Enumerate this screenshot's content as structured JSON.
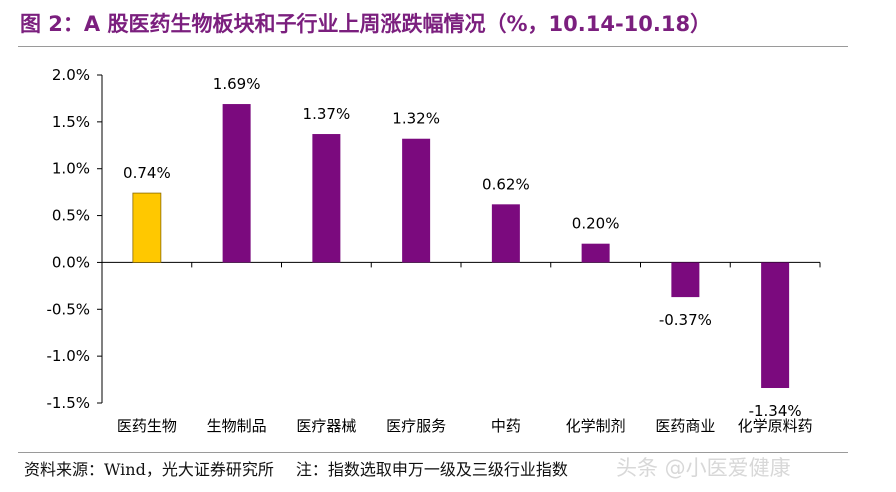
{
  "title": "图 2：A 股医药生物板块和子行业上周涨跌幅情况（%，10.14-10.18）",
  "source": "资料来源：Wind，光大证券研究所",
  "note": "注：指数选取申万一级及三级行业指数",
  "watermark": "头条 @小医爱健康",
  "colors": {
    "highlight": "#FFC800",
    "bar": "#7B0A7E",
    "title": "#7B1F7E",
    "axis": "#000000"
  },
  "chart_data": {
    "type": "bar",
    "categories": [
      "医药生物",
      "生物制品",
      "医疗器械",
      "医疗服务",
      "中药",
      "化学制剂",
      "医药商业",
      "化学原料药"
    ],
    "values": [
      0.74,
      1.69,
      1.37,
      1.32,
      0.62,
      0.2,
      -0.37,
      -1.34
    ],
    "data_labels": [
      "0.74%",
      "1.69%",
      "1.37%",
      "1.32%",
      "0.62%",
      "0.20%",
      "-0.37%",
      "-1.34%"
    ],
    "highlight_index": 0,
    "ylim": [
      -1.5,
      2.0
    ],
    "yticks": [
      2.0,
      1.5,
      1.0,
      0.5,
      0.0,
      -0.5,
      -1.0,
      -1.5
    ],
    "ytick_labels": [
      "2.0%",
      "1.5%",
      "1.0%",
      "0.5%",
      "0.0%",
      "-0.5%",
      "-1.0%",
      "-1.5%"
    ],
    "grid": false,
    "legend": "none"
  }
}
